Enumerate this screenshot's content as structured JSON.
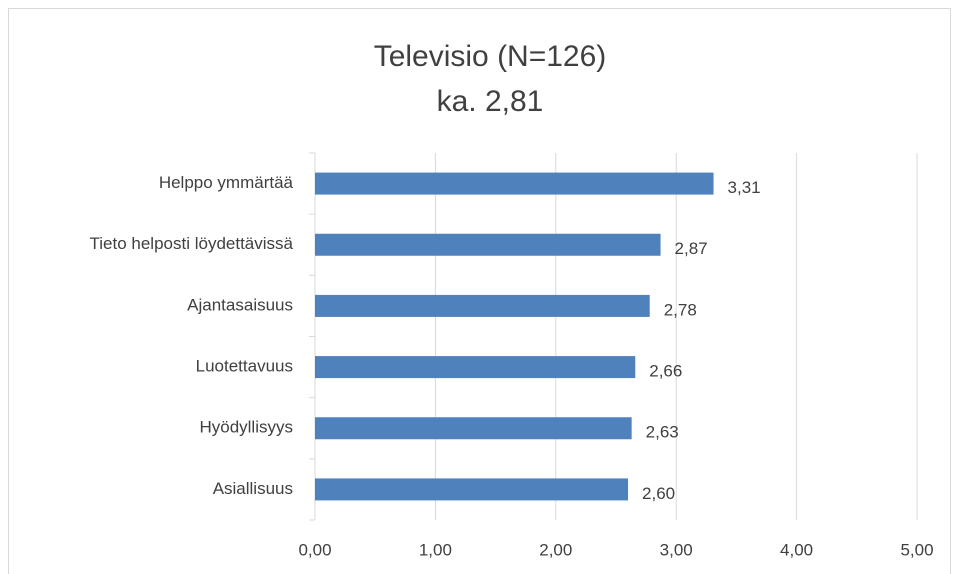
{
  "chart_data": {
    "type": "barh",
    "title": "Televisio  (N=126)",
    "subtitle": "ka. 2,81",
    "categories": [
      "Helppo ymmärtää",
      "Tieto helposti löydettävissä",
      "Ajantasaisuus",
      "Luotettavuus",
      "Hyödyllisyys",
      "Asiallisuus"
    ],
    "values": [
      3.31,
      2.87,
      2.78,
      2.66,
      2.63,
      2.6
    ],
    "value_labels": [
      "3,31",
      "2,87",
      "2,78",
      "2,66",
      "2,63",
      "2,60"
    ],
    "color": "#4f81bd",
    "xlim": [
      0,
      5
    ],
    "xticks": [
      {
        "value": 0,
        "label": "0,00"
      },
      {
        "value": 1,
        "label": "1,00"
      },
      {
        "value": 2,
        "label": "2,00"
      },
      {
        "value": 3,
        "label": "3,00"
      },
      {
        "value": 4,
        "label": "4,00"
      },
      {
        "value": 5,
        "label": "5,00"
      }
    ],
    "grid": true
  }
}
